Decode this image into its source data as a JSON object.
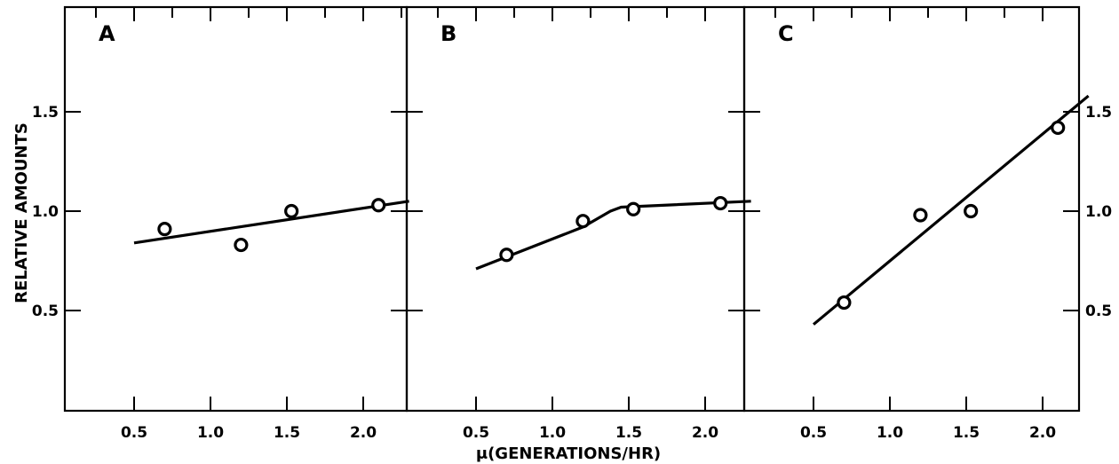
{
  "chart_data": [
    {
      "type": "scatter",
      "panel": "A",
      "x": [
        0.7,
        1.2,
        1.53,
        2.1
      ],
      "y": [
        0.91,
        0.83,
        1.0,
        1.03
      ],
      "fit_line": {
        "x": [
          0.5,
          2.3
        ],
        "y": [
          0.84,
          1.05
        ]
      },
      "xlim": [
        0.0,
        2.55
      ],
      "ylim": [
        0.0,
        2.0
      ],
      "xticks": [
        "0.5",
        "1.0",
        "1.5",
        "2.0"
      ],
      "yticks": [
        "0.5",
        "1.0",
        "1.5"
      ]
    },
    {
      "type": "scatter",
      "panel": "B",
      "x": [
        0.7,
        1.2,
        1.53,
        2.1
      ],
      "y": [
        0.78,
        0.95,
        1.01,
        1.04
      ],
      "fit_line": {
        "x": [
          0.5,
          1.2,
          1.38,
          1.45,
          2.3
        ],
        "y": [
          0.71,
          0.92,
          1.0,
          1.02,
          1.05
        ]
      },
      "xlim": [
        0.0,
        2.55
      ],
      "ylim": [
        0.0,
        2.0
      ],
      "xticks": [
        "0.5",
        "1.0",
        "1.5",
        "2.0"
      ],
      "yticks": []
    },
    {
      "type": "scatter",
      "panel": "C",
      "x": [
        0.7,
        1.2,
        1.53,
        2.1
      ],
      "y": [
        0.54,
        0.98,
        1.0,
        1.42
      ],
      "fit_line": {
        "x": [
          0.5,
          2.3
        ],
        "y": [
          0.43,
          1.58
        ]
      },
      "xlim": [
        0.0,
        2.55
      ],
      "ylim": [
        0.0,
        2.0
      ],
      "xticks": [
        "0.5",
        "1.0",
        "1.5",
        "2.0"
      ],
      "yticks": [
        "0.5",
        "1.0",
        "1.5"
      ]
    }
  ],
  "ylabel": "RELATIVE AMOUNTS",
  "xlabel": "μ(GENERATIONS/HR)"
}
